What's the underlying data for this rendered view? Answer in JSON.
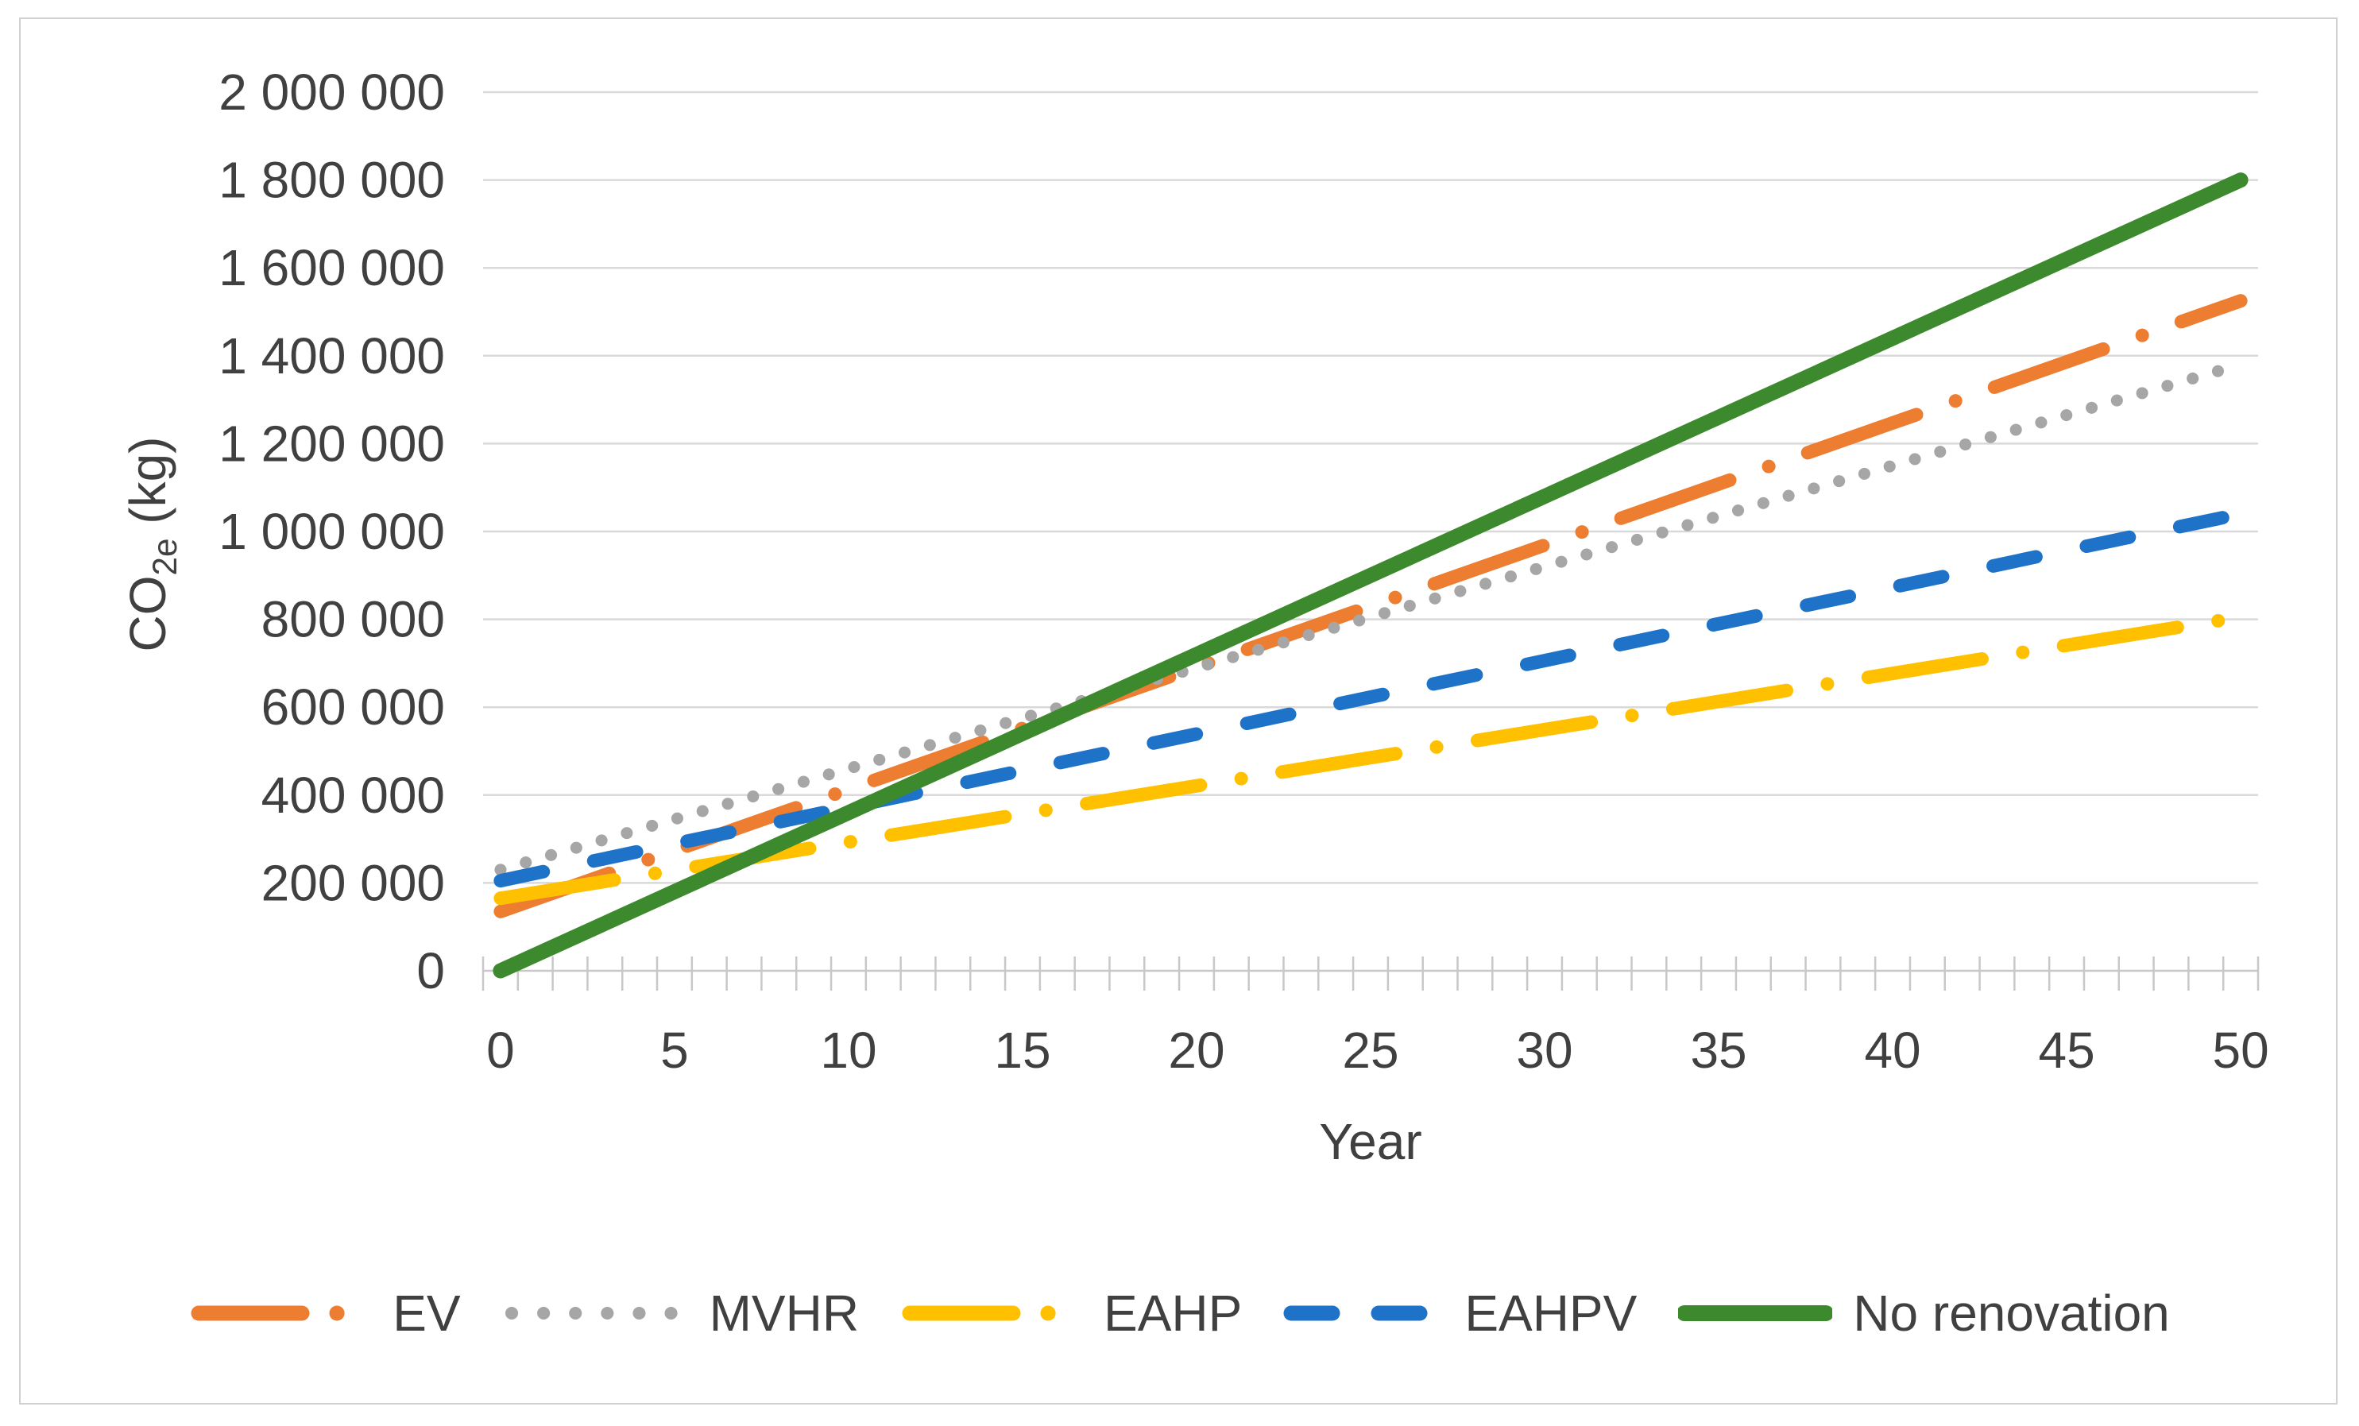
{
  "figure": {
    "background": "#ffffff",
    "border_color": "#d0d0d0"
  },
  "chart_data": {
    "type": "line",
    "title": "",
    "xlabel": "Year",
    "ylabel": "CO2e (kg)",
    "ylabel_parts": {
      "base": "CO",
      "subscript": "2e",
      "suffix": " (kg)"
    },
    "x": [
      0,
      5,
      10,
      15,
      20,
      25,
      30,
      35,
      40,
      45,
      50
    ],
    "xlim": [
      0,
      50
    ],
    "ylim": [
      0,
      2000000
    ],
    "y_tick_interval": 200000,
    "x_major_tick_interval": 5,
    "x_minor_tick_interval": 1,
    "grid": "horizontal",
    "legend_position": "bottom",
    "y_tick_labels": [
      "0",
      "200 000",
      "400 000",
      "600 000",
      "800 000",
      "1 000 000",
      "1 200 000",
      "1 400 000",
      "1 600 000",
      "1 800 000",
      "2 000 000"
    ],
    "x_tick_labels": [
      "0",
      "5",
      "10",
      "15",
      "20",
      "25",
      "30",
      "35",
      "40",
      "45",
      "50"
    ],
    "colors": {
      "grid": "#d9d9d9",
      "axis": "#c8c8c8",
      "text": "#404040"
    },
    "series": [
      {
        "name": "EV",
        "color": "#ED7D31",
        "pattern": "dashdot",
        "values": [
          135000,
          274000,
          413000,
          552000,
          691000,
          830000,
          969000,
          1108000,
          1247000,
          1386000,
          1525000
        ]
      },
      {
        "name": "MVHR",
        "color": "#A6A6A6",
        "pattern": "dotted",
        "values": [
          230000,
          345000,
          460000,
          575000,
          690000,
          805000,
          920000,
          1035000,
          1150000,
          1265000,
          1380000
        ]
      },
      {
        "name": "EAHP",
        "color": "#FFC000",
        "pattern": "dashdot",
        "values": [
          165000,
          229000,
          293000,
          357000,
          421000,
          485000,
          549000,
          613000,
          677000,
          741000,
          805000
        ]
      },
      {
        "name": "EAHPV",
        "color": "#1E73C8",
        "pattern": "dashed",
        "values": [
          205000,
          289000,
          372000,
          456000,
          539000,
          623000,
          706000,
          790000,
          873000,
          957000,
          1040000
        ]
      },
      {
        "name": "No renovation",
        "color": "#3C8A2D",
        "pattern": "solid",
        "values": [
          0,
          180000,
          360000,
          540000,
          720000,
          900000,
          1080000,
          1260000,
          1440000,
          1620000,
          1800000
        ]
      }
    ]
  }
}
